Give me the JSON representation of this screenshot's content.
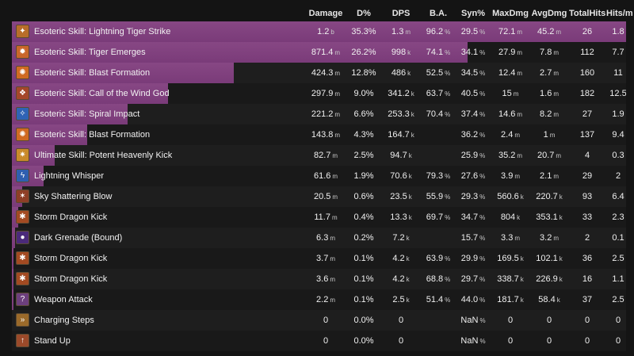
{
  "headers": {
    "damage": "Damage",
    "dpct": "D%",
    "dps": "DPS",
    "ba": "B.A.",
    "syn": "Syn%",
    "maxdmg": "MaxDmg",
    "avgdmg": "AvgDmg",
    "totalhits": "TotalHits",
    "hitsm": "Hits/m"
  },
  "colors": {
    "bar": "#874784",
    "background": "#141414"
  },
  "rows": [
    {
      "name": "Esoteric Skill: Lightning Tiger Strike",
      "icon": "lightning-tiger-strike-icon",
      "glyph": "✦",
      "icon_color": "#b86d2a",
      "bar": 1.0,
      "damage": "1.2",
      "damage_u": "b",
      "dpct": "35.3%",
      "dps": "1.3",
      "dps_u": "m",
      "ba": "96.2",
      "ba_u": "%",
      "syn": "29.5",
      "syn_u": "%",
      "maxdmg": "72.1",
      "maxdmg_u": "m",
      "avgdmg": "45.2",
      "avgdmg_u": "m",
      "totalhits": "26",
      "hitsm": "1.8"
    },
    {
      "name": "Esoteric Skill: Tiger Emerges",
      "icon": "tiger-emerges-icon",
      "glyph": "✹",
      "icon_color": "#c9662a",
      "bar": 0.742,
      "damage": "871.4",
      "damage_u": "m",
      "dpct": "26.2%",
      "dps": "998",
      "dps_u": "k",
      "ba": "74.1",
      "ba_u": "%",
      "syn": "34.1",
      "syn_u": "%",
      "maxdmg": "27.9",
      "maxdmg_u": "m",
      "avgdmg": "7.8",
      "avgdmg_u": "m",
      "totalhits": "112",
      "hitsm": "7.7"
    },
    {
      "name": "Esoteric Skill: Blast Formation",
      "icon": "blast-formation-icon",
      "glyph": "✺",
      "icon_color": "#d06a22",
      "bar": 0.361,
      "damage": "424.3",
      "damage_u": "m",
      "dpct": "12.8%",
      "dps": "486",
      "dps_u": "k",
      "ba": "52.5",
      "ba_u": "%",
      "syn": "34.5",
      "syn_u": "%",
      "maxdmg": "12.4",
      "maxdmg_u": "m",
      "avgdmg": "2.7",
      "avgdmg_u": "m",
      "totalhits": "160",
      "hitsm": "11"
    },
    {
      "name": "Esoteric Skill: Call of the Wind God",
      "icon": "call-of-the-wind-god-icon",
      "glyph": "❖",
      "icon_color": "#a5472a",
      "bar": 0.254,
      "damage": "297.9",
      "damage_u": "m",
      "dpct": "9.0%",
      "dps": "341.2",
      "dps_u": "k",
      "ba": "63.7",
      "ba_u": "%",
      "syn": "40.5",
      "syn_u": "%",
      "maxdmg": "15",
      "maxdmg_u": "m",
      "avgdmg": "1.6",
      "avgdmg_u": "m",
      "totalhits": "182",
      "hitsm": "12.5"
    },
    {
      "name": "Esoteric Skill: Spiral Impact",
      "icon": "spiral-impact-icon",
      "glyph": "✧",
      "icon_color": "#2f63b5",
      "bar": 0.188,
      "damage": "221.2",
      "damage_u": "m",
      "dpct": "6.6%",
      "dps": "253.3",
      "dps_u": "k",
      "ba": "70.4",
      "ba_u": "%",
      "syn": "37.4",
      "syn_u": "%",
      "maxdmg": "14.6",
      "maxdmg_u": "m",
      "avgdmg": "8.2",
      "avgdmg_u": "m",
      "totalhits": "27",
      "hitsm": "1.9"
    },
    {
      "name": "Esoteric Skill: Blast Formation",
      "icon": "blast-formation-icon",
      "glyph": "✺",
      "icon_color": "#d06a22",
      "bar": 0.122,
      "damage": "143.8",
      "damage_u": "m",
      "dpct": "4.3%",
      "dps": "164.7",
      "dps_u": "k",
      "ba": "",
      "ba_u": "",
      "syn": "36.2",
      "syn_u": "%",
      "maxdmg": "2.4",
      "maxdmg_u": "m",
      "avgdmg": "1",
      "avgdmg_u": "m",
      "totalhits": "137",
      "hitsm": "9.4"
    },
    {
      "name": "Ultimate Skill: Potent Heavenly Kick",
      "icon": "potent-heavenly-kick-icon",
      "glyph": "✷",
      "icon_color": "#c98a2a",
      "bar": 0.07,
      "damage": "82.7",
      "damage_u": "m",
      "dpct": "2.5%",
      "dps": "94.7",
      "dps_u": "k",
      "ba": "",
      "ba_u": "",
      "syn": "25.9",
      "syn_u": "%",
      "maxdmg": "35.2",
      "maxdmg_u": "m",
      "avgdmg": "20.7",
      "avgdmg_u": "m",
      "totalhits": "4",
      "hitsm": "0.3"
    },
    {
      "name": "Lightning Whisper",
      "icon": "lightning-whisper-icon",
      "glyph": "ϟ",
      "icon_color": "#2f5fb0",
      "bar": 0.052,
      "damage": "61.6",
      "damage_u": "m",
      "dpct": "1.9%",
      "dps": "70.6",
      "dps_u": "k",
      "ba": "79.3",
      "ba_u": "%",
      "syn": "27.6",
      "syn_u": "%",
      "maxdmg": "3.9",
      "maxdmg_u": "m",
      "avgdmg": "2.1",
      "avgdmg_u": "m",
      "totalhits": "29",
      "hitsm": "2"
    },
    {
      "name": "Sky Shattering Blow",
      "icon": "sky-shattering-blow-icon",
      "glyph": "✶",
      "icon_color": "#8e3e26",
      "bar": 0.017,
      "damage": "20.5",
      "damage_u": "m",
      "dpct": "0.6%",
      "dps": "23.5",
      "dps_u": "k",
      "ba": "55.9",
      "ba_u": "%",
      "syn": "29.3",
      "syn_u": "%",
      "maxdmg": "560.6",
      "maxdmg_u": "k",
      "avgdmg": "220.7",
      "avgdmg_u": "k",
      "totalhits": "93",
      "hitsm": "6.4"
    },
    {
      "name": "Storm Dragon Kick",
      "icon": "storm-dragon-kick-icon",
      "glyph": "✱",
      "icon_color": "#a34a22",
      "bar": 0.01,
      "damage": "11.7",
      "damage_u": "m",
      "dpct": "0.4%",
      "dps": "13.3",
      "dps_u": "k",
      "ba": "69.7",
      "ba_u": "%",
      "syn": "34.7",
      "syn_u": "%",
      "maxdmg": "804",
      "maxdmg_u": "k",
      "avgdmg": "353.1",
      "avgdmg_u": "k",
      "totalhits": "33",
      "hitsm": "2.3"
    },
    {
      "name": "Dark Grenade (Bound)",
      "icon": "dark-grenade-icon",
      "glyph": "●",
      "icon_color": "#4b2a7a",
      "bar": 0.005,
      "damage": "6.3",
      "damage_u": "m",
      "dpct": "0.2%",
      "dps": "7.2",
      "dps_u": "k",
      "ba": "",
      "ba_u": "",
      "syn": "15.7",
      "syn_u": "%",
      "maxdmg": "3.3",
      "maxdmg_u": "m",
      "avgdmg": "3.2",
      "avgdmg_u": "m",
      "totalhits": "2",
      "hitsm": "0.1"
    },
    {
      "name": "Storm Dragon Kick",
      "icon": "storm-dragon-kick-icon",
      "glyph": "✱",
      "icon_color": "#a34a22",
      "bar": 0.003,
      "damage": "3.7",
      "damage_u": "m",
      "dpct": "0.1%",
      "dps": "4.2",
      "dps_u": "k",
      "ba": "63.9",
      "ba_u": "%",
      "syn": "29.9",
      "syn_u": "%",
      "maxdmg": "169.5",
      "maxdmg_u": "k",
      "avgdmg": "102.1",
      "avgdmg_u": "k",
      "totalhits": "36",
      "hitsm": "2.5"
    },
    {
      "name": "Storm Dragon Kick",
      "icon": "storm-dragon-kick-icon",
      "glyph": "✱",
      "icon_color": "#a34a22",
      "bar": 0.003,
      "damage": "3.6",
      "damage_u": "m",
      "dpct": "0.1%",
      "dps": "4.2",
      "dps_u": "k",
      "ba": "68.8",
      "ba_u": "%",
      "syn": "29.7",
      "syn_u": "%",
      "maxdmg": "338.7",
      "maxdmg_u": "k",
      "avgdmg": "226.9",
      "avgdmg_u": "k",
      "totalhits": "16",
      "hitsm": "1.1"
    },
    {
      "name": "Weapon Attack",
      "icon": "weapon-attack-icon",
      "glyph": "?",
      "icon_color": "#6d3f7d",
      "bar": 0.002,
      "damage": "2.2",
      "damage_u": "m",
      "dpct": "0.1%",
      "dps": "2.5",
      "dps_u": "k",
      "ba": "51.4",
      "ba_u": "%",
      "syn": "44.0",
      "syn_u": "%",
      "maxdmg": "181.7",
      "maxdmg_u": "k",
      "avgdmg": "58.4",
      "avgdmg_u": "k",
      "totalhits": "37",
      "hitsm": "2.5"
    },
    {
      "name": "Charging Steps",
      "icon": "charging-steps-icon",
      "glyph": "»",
      "icon_color": "#9b6a2a",
      "bar": 0,
      "damage": "0",
      "damage_u": "",
      "dpct": "0.0%",
      "dps": "0",
      "dps_u": "",
      "ba": "",
      "ba_u": "",
      "syn": "NaN",
      "syn_u": "%",
      "maxdmg": "0",
      "maxdmg_u": "",
      "avgdmg": "0",
      "avgdmg_u": "",
      "totalhits": "0",
      "hitsm": "0"
    },
    {
      "name": "Stand Up",
      "icon": "stand-up-icon",
      "glyph": "↑",
      "icon_color": "#9b4a2a",
      "bar": 0,
      "damage": "0",
      "damage_u": "",
      "dpct": "0.0%",
      "dps": "0",
      "dps_u": "",
      "ba": "",
      "ba_u": "",
      "syn": "NaN",
      "syn_u": "%",
      "maxdmg": "0",
      "maxdmg_u": "",
      "avgdmg": "0",
      "avgdmg_u": "",
      "totalhits": "0",
      "hitsm": "0"
    }
  ]
}
